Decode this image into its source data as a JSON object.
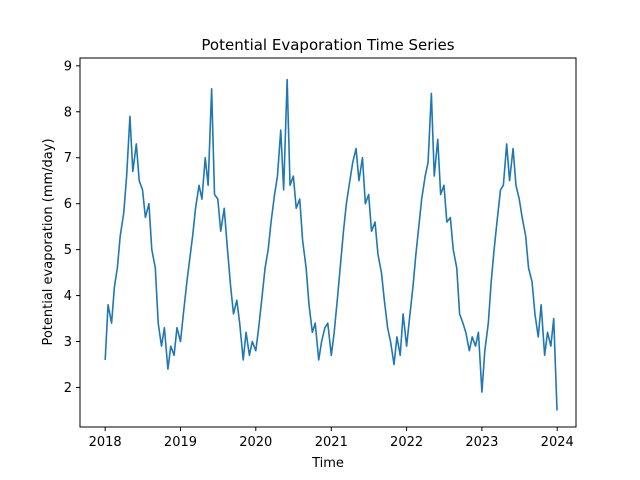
{
  "chart_data": {
    "type": "line",
    "title": "Potential Evaporation Time Series",
    "xlabel": "Time",
    "ylabel": "Potential evaporation (mm/day)",
    "x_tick_labels": [
      "2018",
      "2019",
      "2020",
      "2021",
      "2022",
      "2023",
      "2024"
    ],
    "y_tick_labels": [
      "2",
      "3",
      "4",
      "5",
      "6",
      "7",
      "8",
      "9"
    ],
    "y_ticks": [
      2,
      3,
      4,
      5,
      6,
      7,
      8,
      9
    ],
    "xlim": [
      "2017-09-01",
      "2024-04-01"
    ],
    "ylim": [
      1.14,
      9.17
    ],
    "grid": false,
    "color": "#1f77b4",
    "series": [
      {
        "x": [
          "2018-01-01",
          "2018-01-15",
          "2018-02-01",
          "2018-02-15",
          "2018-03-01",
          "2018-03-15",
          "2018-04-01",
          "2018-04-15",
          "2018-05-01",
          "2018-05-15",
          "2018-06-01",
          "2018-06-15",
          "2018-07-01",
          "2018-07-15",
          "2018-08-01",
          "2018-08-15",
          "2018-09-01",
          "2018-09-15",
          "2018-10-01",
          "2018-10-15",
          "2018-11-01",
          "2018-11-15",
          "2018-12-01",
          "2018-12-15",
          "2019-01-01",
          "2019-01-15",
          "2019-02-01",
          "2019-02-15",
          "2019-03-01",
          "2019-03-15",
          "2019-04-01",
          "2019-04-15",
          "2019-05-01",
          "2019-05-15",
          "2019-06-01",
          "2019-06-15",
          "2019-07-01",
          "2019-07-15",
          "2019-08-01",
          "2019-08-15",
          "2019-09-01",
          "2019-09-15",
          "2019-10-01",
          "2019-10-15",
          "2019-11-01",
          "2019-11-15",
          "2019-12-01",
          "2019-12-15",
          "2020-01-01",
          "2020-01-15",
          "2020-02-01",
          "2020-02-15",
          "2020-03-01",
          "2020-03-15",
          "2020-04-01",
          "2020-04-15",
          "2020-05-01",
          "2020-05-15",
          "2020-06-01",
          "2020-06-15",
          "2020-07-01",
          "2020-07-15",
          "2020-08-01",
          "2020-08-15",
          "2020-09-01",
          "2020-09-15",
          "2020-10-01",
          "2020-10-15",
          "2020-11-01",
          "2020-11-15",
          "2020-12-01",
          "2020-12-15",
          "2021-01-01",
          "2021-01-15",
          "2021-02-01",
          "2021-02-15",
          "2021-03-01",
          "2021-03-15",
          "2021-04-01",
          "2021-04-15",
          "2021-05-01",
          "2021-05-15",
          "2021-06-01",
          "2021-06-15",
          "2021-07-01",
          "2021-07-15",
          "2021-08-01",
          "2021-08-15",
          "2021-09-01",
          "2021-09-15",
          "2021-10-01",
          "2021-10-15",
          "2021-11-01",
          "2021-11-15",
          "2021-12-01",
          "2021-12-15",
          "2022-01-01",
          "2022-01-15",
          "2022-02-01",
          "2022-02-15",
          "2022-03-01",
          "2022-03-15",
          "2022-04-01",
          "2022-04-15",
          "2022-05-01",
          "2022-05-15",
          "2022-06-01",
          "2022-06-15",
          "2022-07-01",
          "2022-07-15",
          "2022-08-01",
          "2022-08-15",
          "2022-09-01",
          "2022-09-15",
          "2022-10-01",
          "2022-10-15",
          "2022-11-01",
          "2022-11-15",
          "2022-12-01",
          "2022-12-15",
          "2023-01-01",
          "2023-01-15",
          "2023-02-01",
          "2023-02-15",
          "2023-03-01",
          "2023-03-15",
          "2023-04-01",
          "2023-04-15",
          "2023-05-01",
          "2023-05-15",
          "2023-06-01",
          "2023-06-15",
          "2023-07-01",
          "2023-07-15",
          "2023-08-01",
          "2023-08-15",
          "2023-09-01",
          "2023-09-15",
          "2023-10-01",
          "2023-10-15",
          "2023-11-01",
          "2023-11-15",
          "2023-12-01",
          "2023-12-15",
          "2023-12-31"
        ],
        "values": [
          2.6,
          3.8,
          3.4,
          4.2,
          4.6,
          5.3,
          5.8,
          6.6,
          7.9,
          6.7,
          7.3,
          6.5,
          6.3,
          5.7,
          6.0,
          5.0,
          4.6,
          3.4,
          2.9,
          3.3,
          2.4,
          2.9,
          2.7,
          3.3,
          3.0,
          3.6,
          4.3,
          4.8,
          5.3,
          5.9,
          6.4,
          6.1,
          7.0,
          6.4,
          8.5,
          6.2,
          6.1,
          5.4,
          5.9,
          5.1,
          4.2,
          3.6,
          3.9,
          3.4,
          2.6,
          3.2,
          2.7,
          3.0,
          2.8,
          3.3,
          4.0,
          4.6,
          5.0,
          5.6,
          6.2,
          6.6,
          7.6,
          6.3,
          8.7,
          6.4,
          6.6,
          5.9,
          6.1,
          5.2,
          4.6,
          3.8,
          3.2,
          3.4,
          2.6,
          3.0,
          3.3,
          3.4,
          2.7,
          3.2,
          4.0,
          4.7,
          5.4,
          6.0,
          6.5,
          6.9,
          7.2,
          6.5,
          7.0,
          6.0,
          6.2,
          5.4,
          5.6,
          4.9,
          4.5,
          3.9,
          3.3,
          3.0,
          2.5,
          3.1,
          2.7,
          3.6,
          2.9,
          3.5,
          4.2,
          4.9,
          5.5,
          6.1,
          6.6,
          6.9,
          8.4,
          6.6,
          7.4,
          6.2,
          6.4,
          5.6,
          5.7,
          5.0,
          4.6,
          3.6,
          3.4,
          3.2,
          2.8,
          3.1,
          2.9,
          3.2,
          1.9,
          2.8,
          3.4,
          4.3,
          5.0,
          5.6,
          6.3,
          6.4,
          7.3,
          6.5,
          7.2,
          6.4,
          6.1,
          5.7,
          5.3,
          4.6,
          4.3,
          3.6,
          3.1,
          3.8,
          2.7,
          3.2,
          2.9,
          3.5,
          1.5
        ]
      }
    ]
  }
}
